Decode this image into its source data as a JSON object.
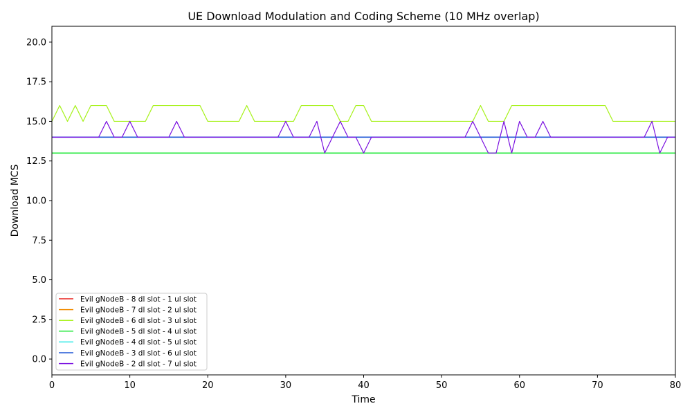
{
  "chart_data": {
    "type": "line",
    "title": "UE Download Modulation and Coding Scheme (10 MHz overlap)",
    "xlabel": "Time",
    "ylabel": "Download MCS",
    "xlim": [
      0,
      80
    ],
    "ylim": [
      -1,
      21
    ],
    "xticks": [
      0,
      10,
      20,
      30,
      40,
      50,
      60,
      70,
      80
    ],
    "yticks": [
      0.0,
      2.5,
      5.0,
      7.5,
      10.0,
      12.5,
      15.0,
      17.5,
      20.0
    ],
    "ytick_labels": [
      "0.0",
      "2.5",
      "5.0",
      "7.5",
      "10.0",
      "12.5",
      "15.0",
      "17.5",
      "20.0"
    ],
    "grid": false,
    "legend_position": "lower-left",
    "x": [
      0,
      1,
      2,
      3,
      4,
      5,
      6,
      7,
      8,
      9,
      10,
      11,
      12,
      13,
      14,
      15,
      16,
      17,
      18,
      19,
      20,
      21,
      22,
      23,
      24,
      25,
      26,
      27,
      28,
      29,
      30,
      31,
      32,
      33,
      34,
      35,
      36,
      37,
      38,
      39,
      40,
      41,
      42,
      43,
      44,
      45,
      46,
      47,
      48,
      49,
      50,
      51,
      52,
      53,
      54,
      55,
      56,
      57,
      58,
      59,
      60,
      61,
      62,
      63,
      64,
      65,
      66,
      67,
      68,
      69,
      70,
      71,
      72,
      73,
      74,
      75,
      76,
      77,
      78,
      79,
      80
    ],
    "series": [
      {
        "name": "Evil gNodeB - 8 dl slot - 1 ul slot",
        "color": "#e8221f",
        "values": [
          14,
          14,
          14,
          14,
          14,
          14,
          14,
          14,
          14,
          14,
          14,
          14,
          14,
          14,
          14,
          14,
          14,
          14,
          14,
          14,
          14,
          14,
          14,
          14,
          14,
          14,
          14,
          14,
          14,
          14,
          14,
          14,
          14,
          14,
          14,
          14,
          14,
          14,
          14,
          14,
          14,
          14,
          14,
          14,
          14,
          14,
          14,
          14,
          14,
          14,
          14,
          14,
          14,
          14,
          14,
          14,
          14,
          14,
          14,
          14,
          14,
          14,
          14,
          14,
          14,
          14,
          14,
          14,
          14,
          14,
          14,
          14,
          14,
          14,
          14,
          14,
          14,
          14,
          14,
          14,
          14
        ]
      },
      {
        "name": "Evil gNodeB - 7 dl slot - 2 ul slot",
        "color": "#f28c00",
        "values": [
          14,
          14,
          14,
          14,
          14,
          14,
          14,
          14,
          14,
          14,
          14,
          14,
          14,
          14,
          14,
          14,
          14,
          14,
          14,
          14,
          14,
          14,
          14,
          14,
          14,
          14,
          14,
          14,
          14,
          14,
          14,
          14,
          14,
          14,
          14,
          14,
          14,
          14,
          14,
          14,
          14,
          14,
          14,
          14,
          14,
          14,
          14,
          14,
          14,
          14,
          14,
          14,
          14,
          14,
          14,
          14,
          14,
          14,
          14,
          14,
          14,
          14,
          14,
          14,
          14,
          14,
          14,
          14,
          14,
          14,
          14,
          14,
          14,
          14,
          14,
          14,
          14,
          14,
          14,
          14,
          14
        ]
      },
      {
        "name": "Evil gNodeB - 6 dl slot - 3 ul slot",
        "color": "#a8f21e",
        "values": [
          15,
          16,
          15,
          16,
          15,
          16,
          16,
          16,
          15,
          15,
          15,
          15,
          15,
          16,
          16,
          16,
          16,
          16,
          16,
          16,
          15,
          15,
          15,
          15,
          15,
          16,
          15,
          15,
          15,
          15,
          15,
          15,
          16,
          16,
          16,
          16,
          16,
          15,
          15,
          16,
          16,
          15,
          15,
          15,
          15,
          15,
          15,
          15,
          15,
          15,
          15,
          15,
          15,
          15,
          15,
          16,
          15,
          15,
          15,
          16,
          16,
          16,
          16,
          16,
          16,
          16,
          16,
          16,
          16,
          16,
          16,
          16,
          15,
          15,
          15,
          15,
          15,
          15,
          15,
          15,
          15
        ]
      },
      {
        "name": "Evil gNodeB - 5 dl slot - 4 ul slot",
        "color": "#22e83a",
        "values": [
          13,
          13,
          13,
          13,
          13,
          13,
          13,
          13,
          13,
          13,
          13,
          13,
          13,
          13,
          13,
          13,
          13,
          13,
          13,
          13,
          13,
          13,
          13,
          13,
          13,
          13,
          13,
          13,
          13,
          13,
          13,
          13,
          13,
          13,
          13,
          13,
          13,
          13,
          13,
          13,
          13,
          13,
          13,
          13,
          13,
          13,
          13,
          13,
          13,
          13,
          13,
          13,
          13,
          13,
          13,
          13,
          13,
          13,
          13,
          13,
          13,
          13,
          13,
          13,
          13,
          13,
          13,
          13,
          13,
          13,
          13,
          13,
          13,
          13,
          13,
          13,
          13,
          13,
          13,
          13,
          13
        ]
      },
      {
        "name": "Evil gNodeB - 4 dl slot - 5 ul slot",
        "color": "#2ee8e6",
        "values": [
          14,
          14,
          14,
          14,
          14,
          14,
          14,
          14,
          14,
          14,
          14,
          14,
          14,
          14,
          14,
          14,
          14,
          14,
          14,
          14,
          14,
          14,
          14,
          14,
          14,
          14,
          14,
          14,
          14,
          14,
          14,
          14,
          14,
          14,
          14,
          14,
          14,
          14,
          14,
          14,
          14,
          14,
          14,
          14,
          14,
          14,
          14,
          14,
          14,
          14,
          14,
          14,
          14,
          14,
          14,
          14,
          14,
          14,
          14,
          14,
          14,
          14,
          14,
          14,
          14,
          14,
          14,
          14,
          14,
          14,
          14,
          14,
          14,
          14,
          14,
          14,
          14,
          14,
          14,
          14,
          14
        ]
      },
      {
        "name": "Evil gNodeB - 3 dl slot - 6 ul slot",
        "color": "#1f57d6",
        "values": [
          14,
          14,
          14,
          14,
          14,
          14,
          14,
          14,
          14,
          14,
          14,
          14,
          14,
          14,
          14,
          14,
          14,
          14,
          14,
          14,
          14,
          14,
          14,
          14,
          14,
          14,
          14,
          14,
          14,
          14,
          14,
          14,
          14,
          14,
          14,
          14,
          14,
          14,
          14,
          14,
          14,
          14,
          14,
          14,
          14,
          14,
          14,
          14,
          14,
          14,
          14,
          14,
          14,
          14,
          14,
          14,
          14,
          14,
          14,
          14,
          14,
          14,
          14,
          14,
          14,
          14,
          14,
          14,
          14,
          14,
          14,
          14,
          14,
          14,
          14,
          14,
          14,
          14,
          14,
          14,
          14
        ]
      },
      {
        "name": "Evil gNodeB - 2 dl slot - 7 ul slot",
        "color": "#7a10e0",
        "values": [
          14,
          14,
          14,
          14,
          14,
          14,
          14,
          15,
          14,
          14,
          15,
          14,
          14,
          14,
          14,
          14,
          15,
          14,
          14,
          14,
          14,
          14,
          14,
          14,
          14,
          14,
          14,
          14,
          14,
          14,
          15,
          14,
          14,
          14,
          15,
          13,
          14,
          15,
          14,
          14,
          13,
          14,
          14,
          14,
          14,
          14,
          14,
          14,
          14,
          14,
          14,
          14,
          14,
          14,
          15,
          14,
          13,
          13,
          15,
          13,
          15,
          14,
          14,
          15,
          14,
          14,
          14,
          14,
          14,
          14,
          14,
          14,
          14,
          14,
          14,
          14,
          14,
          15,
          13,
          14,
          14
        ]
      }
    ]
  }
}
